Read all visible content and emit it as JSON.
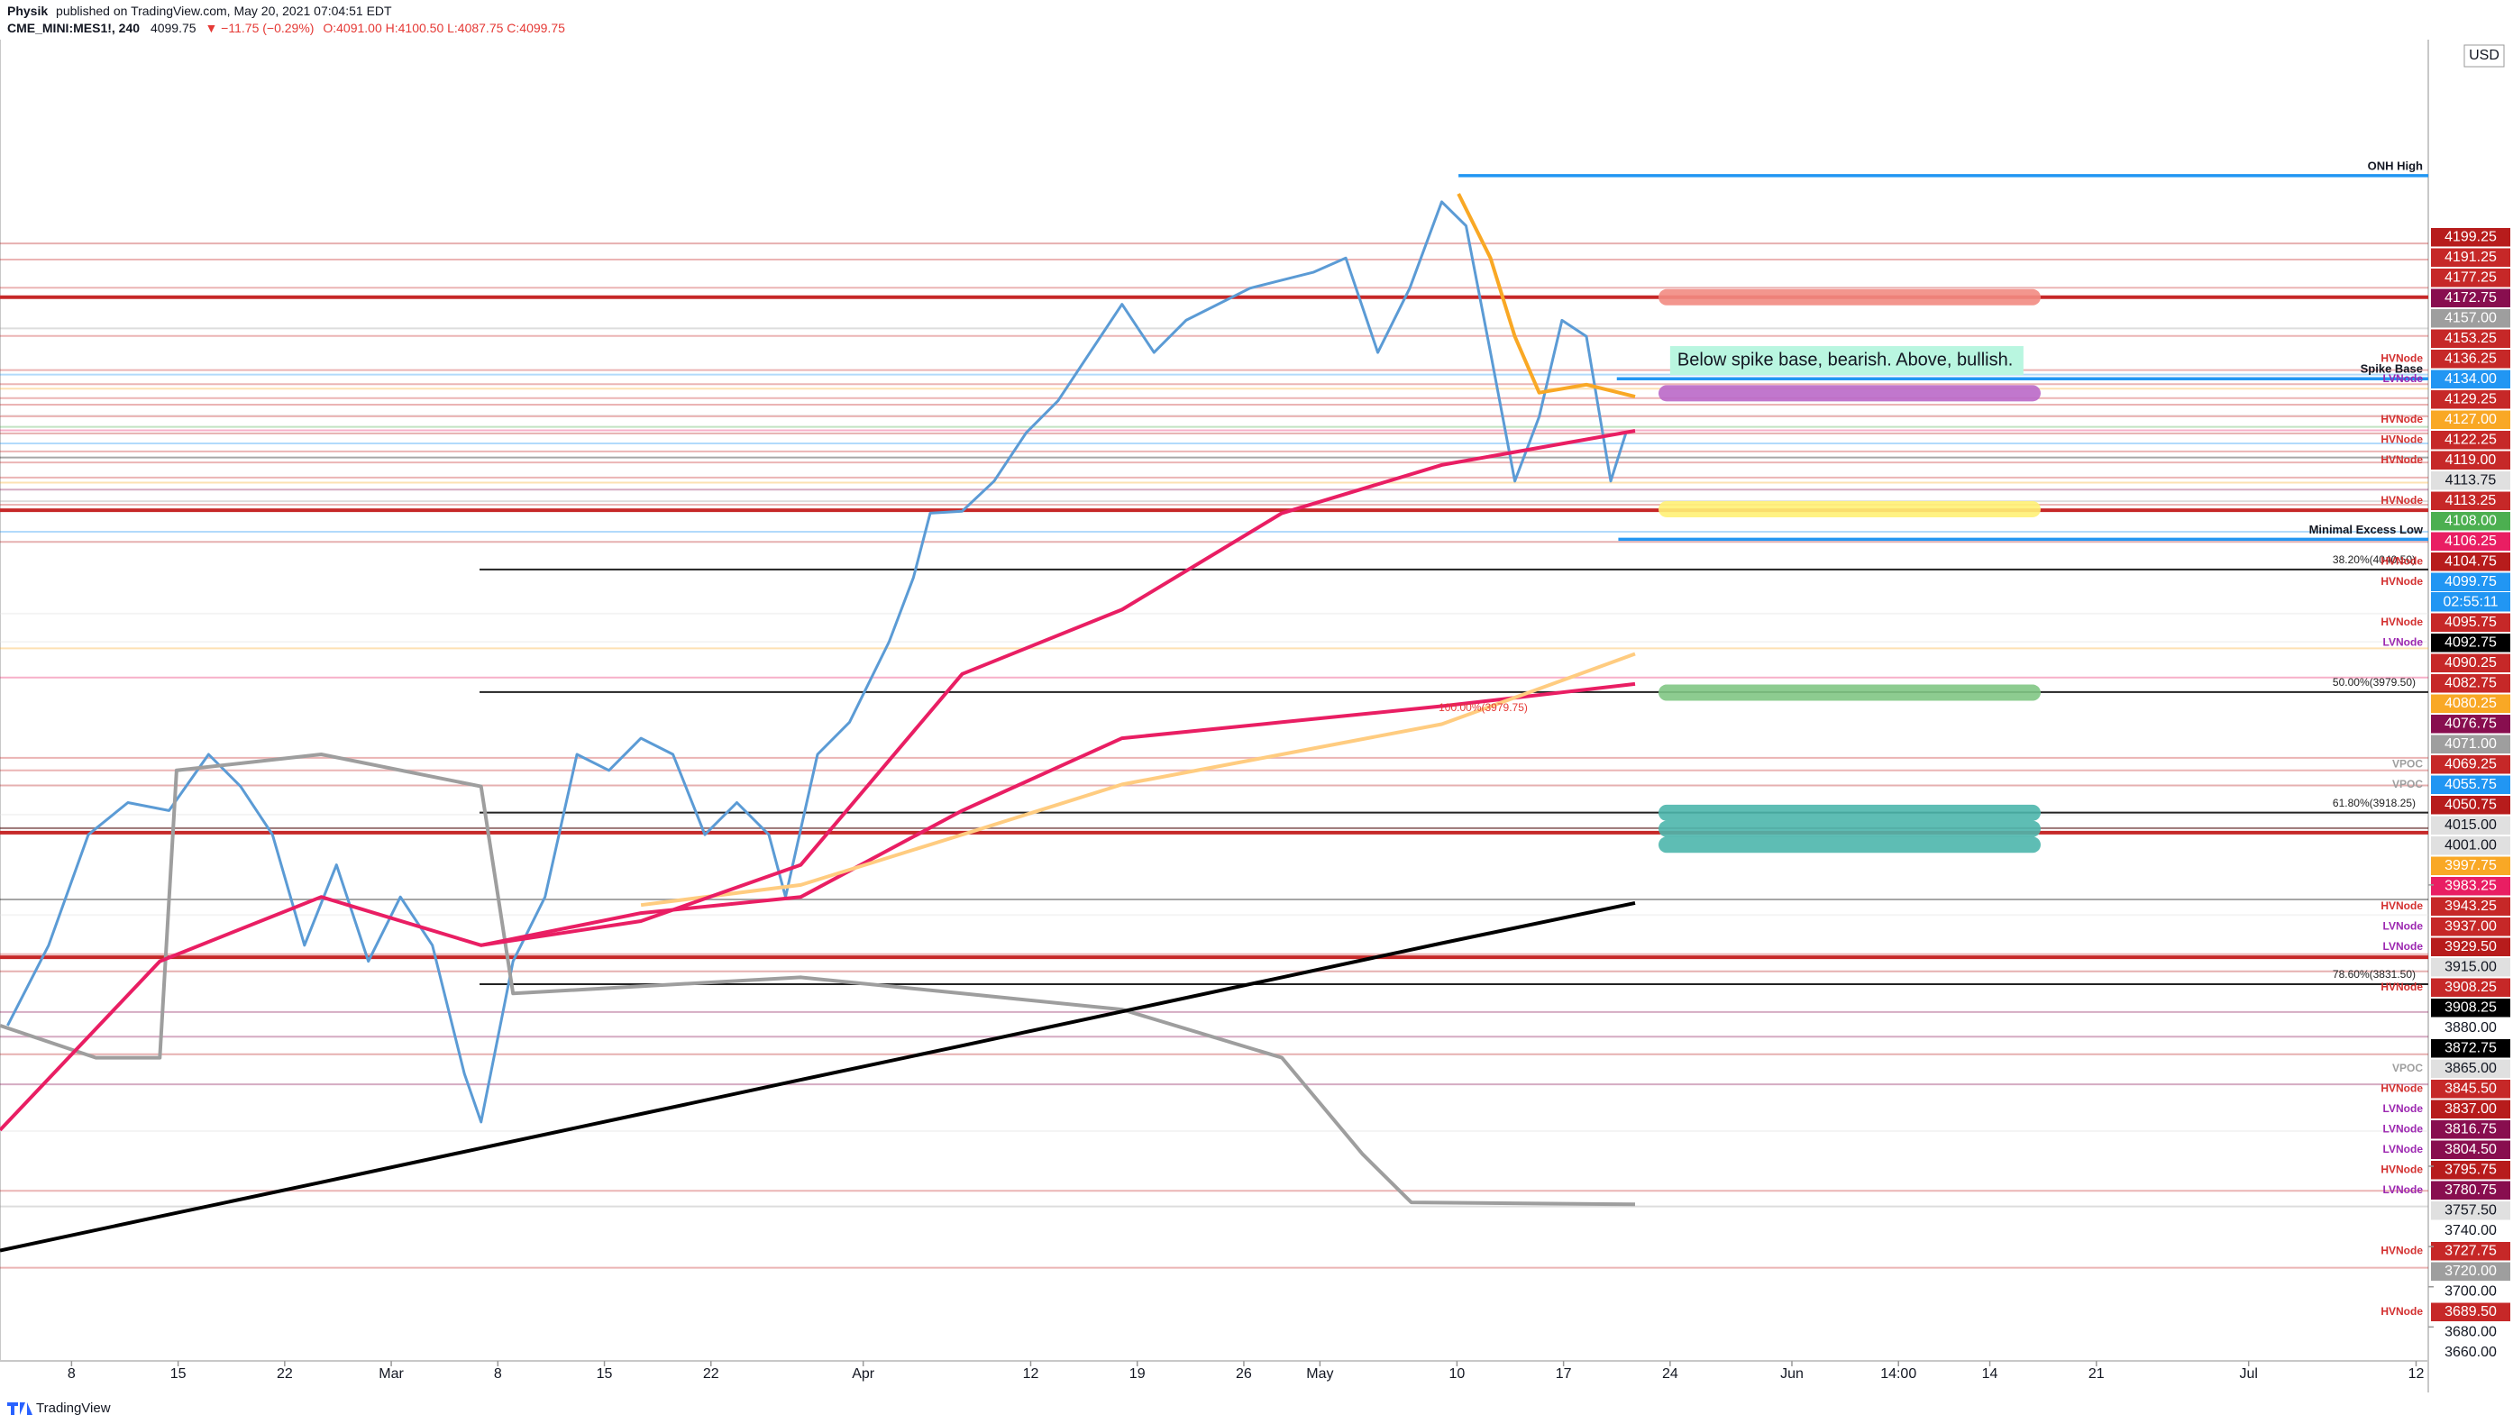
{
  "header": {
    "publisher": "Physik",
    "published": "published on TradingView.com, May 20, 2021 07:04:51 EDT",
    "symbol": "CME_MINI:MES1!, 240",
    "last": "4099.75",
    "change": "▼ −11.75 (−0.29%)",
    "ohlc": "O:4091.00 H:4100.50 L:4087.75 C:4099.75"
  },
  "footer": "TradingView",
  "chart_data": {
    "type": "line",
    "currency": "USD",
    "xlim": [
      2.3,
      161.8
    ],
    "ylim": [
      3644,
      4298
    ],
    "xticks": [
      {
        "value": 7,
        "label": "8"
      },
      {
        "value": 14,
        "label": "15"
      },
      {
        "value": 21,
        "label": "22"
      },
      {
        "value": 28,
        "label": "Mar"
      },
      {
        "value": 35,
        "label": "8"
      },
      {
        "value": 42,
        "label": "15"
      },
      {
        "value": 49,
        "label": "22"
      },
      {
        "value": 59,
        "label": "Apr"
      },
      {
        "value": 70,
        "label": "12"
      },
      {
        "value": 77,
        "label": "19"
      },
      {
        "value": 84,
        "label": "26"
      },
      {
        "value": 89,
        "label": "May"
      },
      {
        "value": 98,
        "label": "10"
      },
      {
        "value": 105,
        "label": "17"
      },
      {
        "value": 112,
        "label": "24"
      },
      {
        "value": 120,
        "label": "Jun"
      },
      {
        "value": 127,
        "label": "14:00"
      },
      {
        "value": 133,
        "label": "14"
      },
      {
        "value": 140,
        "label": "21"
      },
      {
        "value": 150,
        "label": "Jul"
      },
      {
        "value": 161,
        "label": "12"
      }
    ],
    "yticks": [
      {
        "value": 3880,
        "label": "3880.00"
      },
      {
        "value": 3740,
        "label": "3740.00"
      },
      {
        "value": 3700,
        "label": "3700.00"
      },
      {
        "value": 3680,
        "label": "3680.00"
      },
      {
        "value": 3660,
        "label": "3660.00"
      }
    ],
    "node_colors": {
      "HVNode": "#d32f2f",
      "LVNode": "#9c27b0",
      "VPOC": "#9e9e9e"
    },
    "series": [
      {
        "color": "#5b9bd5",
        "x": [
          2.8,
          5.5,
          8.1,
          10.7,
          13.4,
          16.0,
          18.1,
          20.2,
          22.3,
          24.4,
          26.5,
          28.6,
          30.7,
          32.8,
          33.9,
          36.0,
          38.1,
          40.2,
          42.3,
          44.4,
          46.5,
          48.6,
          50.7,
          52.8,
          53.9,
          56.0,
          58.1,
          60.7,
          62.3,
          63.4,
          65.5,
          67.6,
          69.7,
          71.8,
          73.9,
          76.0,
          78.1,
          80.2,
          82.3,
          84.4,
          86.5,
          88.6,
          90.7,
          92.8,
          94.9,
          97.0,
          98.6,
          100.2,
          101.8,
          103.4,
          104.9,
          106.5,
          108.1,
          109.1
        ],
        "values": [
          3810,
          3850,
          3905,
          3921,
          3917,
          3945,
          3929,
          3905,
          3850,
          3890,
          3842,
          3874,
          3850,
          3786,
          3762,
          3842,
          3874,
          3945,
          3937,
          3953,
          3945,
          3905,
          3921,
          3905,
          3874,
          3945,
          3961,
          4001,
          4033,
          4065,
          4066,
          4081,
          4105,
          4121,
          4145,
          4169,
          4145,
          4161,
          4169,
          4177,
          4181,
          4185,
          4192,
          4145,
          4177,
          4220,
          4208,
          4145,
          4081,
          4113,
          4161,
          4153,
          4081,
          4105
        ]
      },
      {
        "color": "#9e9e9e",
        "x": [
          2.3,
          8.6,
          12.8,
          13.9,
          23.4,
          33.9,
          36.0,
          54.9,
          65.5,
          76.0,
          86.5,
          91.8,
          95.0,
          109.7
        ],
        "values": [
          3810,
          3794,
          3794,
          3937,
          3945,
          3929,
          3826,
          3834,
          3826,
          3818,
          3794,
          3746,
          3722,
          3721
        ]
      },
      {
        "color": "#000000",
        "x": [
          2.3,
          12.8,
          23.4,
          33.9,
          44.4,
          54.9,
          65.5,
          76.0,
          86.5,
          97.0,
          109.7
        ],
        "values": [
          3698,
          3715,
          3732,
          3749,
          3766,
          3783,
          3800,
          3817,
          3834,
          3851,
          3871
        ]
      },
      {
        "color": "#e91e63",
        "x": [
          2.3,
          12.8,
          23.4,
          33.9,
          44.4,
          54.9,
          65.5,
          76.0,
          86.5,
          97.0,
          109.7
        ],
        "values": [
          3758,
          3842,
          3874,
          3850,
          3866,
          3874,
          3917,
          3953,
          3961,
          3969,
          3980
        ]
      },
      {
        "color": "#ffcc80",
        "x": [
          44.4,
          54.9,
          65.5,
          76.0,
          86.5,
          97.0,
          109.7
        ],
        "values": [
          3870,
          3880,
          3905,
          3930,
          3945,
          3960,
          3995
        ]
      },
      {
        "color": "#e91e63",
        "x": [
          33.9,
          44.4,
          54.9,
          65.5,
          76.0,
          86.5,
          97.0,
          109.7
        ],
        "values": [
          3850,
          3862,
          3890,
          3985,
          4017,
          4065,
          4089,
          4106
        ]
      },
      {
        "color": "#f9a825",
        "x": [
          98.1,
          100.2,
          101.8,
          103.4,
          106.5,
          109.7
        ],
        "values": [
          4224,
          4192,
          4153,
          4125,
          4129,
          4123
        ]
      }
    ],
    "levels": [
      {
        "value": 4172.5,
        "color": "#c62828"
      },
      {
        "value": 4066.5,
        "color": "#c62828"
      },
      {
        "value": 3906,
        "color": "#c62828"
      },
      {
        "value": 3844,
        "color": "#c62828"
      }
    ],
    "rays": [
      {
        "value": 4233,
        "start": 98.1,
        "label": "ONH High",
        "color": "#2196f3"
      },
      {
        "value": 4131.9,
        "start": 108.5,
        "label": "Spike Base",
        "color": "#2196f3"
      },
      {
        "value": 4052,
        "start": 108.6,
        "label": "Minimal Excess Low",
        "color": "#2196f3"
      }
    ],
    "fibs": [
      {
        "value": 4037,
        "start": 33.8,
        "label": "38.20%(4040.50)"
      },
      {
        "value": 3976,
        "start": 33.8,
        "label": "50.00%(3979.50)"
      },
      {
        "value": 3916,
        "start": 33.8,
        "label": "61.80%(3918.25)"
      },
      {
        "value": 3830.6,
        "start": 33.8,
        "label": "78.60%(3831.50)"
      }
    ],
    "annotations": [
      {
        "text": "100.00%(3979.75)",
        "x": 96.8,
        "value": 3968,
        "color": "#e53935"
      }
    ],
    "zones": [
      {
        "value": 4172.5,
        "color": "#f28b82"
      },
      {
        "value": 4124.7,
        "color": "#ba68c8"
      },
      {
        "value": 4067,
        "color": "#fff176"
      },
      {
        "value": 3975.7,
        "color": "#81c784"
      },
      {
        "value": 3915.9,
        "color": "#4db6ac"
      },
      {
        "value": 3907.9,
        "color": "#4db6ac"
      },
      {
        "value": 3900,
        "color": "#4db6ac"
      }
    ],
    "note": {
      "text": "Below spike base, bearish. Above, bullish.",
      "x": 112,
      "value": 4141,
      "color": "#b9f6e0"
    },
    "tags": [
      {
        "value": 4199.25,
        "label": "4199.25",
        "color": "#b71c1c"
      },
      {
        "value": 4191.25,
        "label": "4191.25",
        "color": "#c62828"
      },
      {
        "value": 4177.25,
        "label": "4177.25",
        "color": "#c62828"
      },
      {
        "value": 4172.75,
        "label": "4172.75",
        "color": "#880e4f"
      },
      {
        "value": 4157,
        "label": "4157.00",
        "color": "#9e9e9e"
      },
      {
        "value": 4153.25,
        "label": "4153.25",
        "color": "#c62828"
      },
      {
        "value": 4136.25,
        "label": "4136.25",
        "color": "#c62828",
        "node": "HVNode"
      },
      {
        "value": 4134,
        "label": "4134.00",
        "color": "#2196f3",
        "node": "LVNode"
      },
      {
        "value": 4129.25,
        "label": "4129.25",
        "color": "#c62828"
      },
      {
        "value": 4127,
        "label": "4127.00",
        "color": "#f9a825",
        "node": "HVNode"
      },
      {
        "value": 4122.25,
        "label": "4122.25",
        "color": "#c62828",
        "node": "HVNode"
      },
      {
        "value": 4119,
        "label": "4119.00",
        "color": "#c62828",
        "node": "HVNode"
      },
      {
        "value": 4113.75,
        "label": "4113.75",
        "color": "#e0e0e0"
      },
      {
        "value": 4113.25,
        "label": "4113.25",
        "color": "#c62828",
        "node": "HVNode"
      },
      {
        "value": 4108,
        "label": "4108.00",
        "color": "#4caf50"
      },
      {
        "value": 4106.25,
        "label": "4106.25",
        "color": "#e91e63"
      },
      {
        "value": 4104.75,
        "label": "4104.75",
        "color": "#b71c1c",
        "node": "HVNode"
      },
      {
        "value": 4099.75,
        "label": "4099.75",
        "color": "#2196f3",
        "node": "HVNode",
        "countdown": "02:55:11"
      },
      {
        "value": 4095.75,
        "label": "4095.75",
        "color": "#c62828",
        "node": "HVNode"
      },
      {
        "value": 4092.75,
        "label": "4092.75",
        "color": "#000000",
        "node": "LVNode"
      },
      {
        "value": 4090.25,
        "label": "4090.25",
        "color": "#c62828"
      },
      {
        "value": 4082.75,
        "label": "4082.75",
        "color": "#c62828"
      },
      {
        "value": 4080.25,
        "label": "4080.25",
        "color": "#f9a825"
      },
      {
        "value": 4076.75,
        "label": "4076.75",
        "color": "#880e4f"
      },
      {
        "value": 4071,
        "label": "4071.00",
        "color": "#9e9e9e"
      },
      {
        "value": 4069.25,
        "label": "4069.25",
        "color": "#c62828",
        "node": "VPOC"
      },
      {
        "value": 4055.75,
        "label": "4055.75",
        "color": "#2196f3",
        "node": "VPOC"
      },
      {
        "value": 4050.75,
        "label": "4050.75",
        "color": "#b71c1c"
      },
      {
        "value": 4015,
        "label": "4015.00",
        "color": "#e0e0e0"
      },
      {
        "value": 4001,
        "label": "4001.00",
        "color": "#e0e0e0"
      },
      {
        "value": 3997.75,
        "label": "3997.75",
        "color": "#f9a825"
      },
      {
        "value": 3983.25,
        "label": "3983.25",
        "color": "#e91e63"
      },
      {
        "value": 3943.25,
        "label": "3943.25",
        "color": "#c62828",
        "node": "HVNode"
      },
      {
        "value": 3937,
        "label": "3937.00",
        "color": "#c62828",
        "node": "LVNode"
      },
      {
        "value": 3929.5,
        "label": "3929.50",
        "color": "#b71c1c",
        "node": "LVNode"
      },
      {
        "value": 3915,
        "label": "3915.00",
        "color": "#e0e0e0"
      },
      {
        "value": 3908.25,
        "label": "3908.25",
        "color": "#c62828",
        "node": "HVNode"
      },
      {
        "value": 3908.25,
        "label": "3908.25",
        "color": "#000000"
      },
      {
        "value": 3872.75,
        "label": "3872.75",
        "color": "#000000"
      },
      {
        "value": 3865,
        "label": "3865.00",
        "color": "#e0e0e0",
        "node": "VPOC"
      },
      {
        "value": 3845.5,
        "label": "3845.50",
        "color": "#c62828",
        "node": "HVNode"
      },
      {
        "value": 3837,
        "label": "3837.00",
        "color": "#b71c1c",
        "node": "LVNode"
      },
      {
        "value": 3816.75,
        "label": "3816.75",
        "color": "#880e4f",
        "node": "LVNode"
      },
      {
        "value": 3804.5,
        "label": "3804.50",
        "color": "#880e4f",
        "node": "LVNode"
      },
      {
        "value": 3795.75,
        "label": "3795.75",
        "color": "#b71c1c",
        "node": "HVNode"
      },
      {
        "value": 3780.75,
        "label": "3780.75",
        "color": "#880e4f",
        "node": "LVNode"
      },
      {
        "value": 3757.5,
        "label": "3757.50",
        "color": "#e0e0e0"
      },
      {
        "value": 3727.75,
        "label": "3727.75",
        "color": "#c62828",
        "node": "HVNode"
      },
      {
        "value": 3720,
        "label": "3720.00",
        "color": "#9e9e9e"
      },
      {
        "value": 3689.5,
        "label": "3689.50",
        "color": "#c62828",
        "node": "HVNode"
      }
    ]
  }
}
